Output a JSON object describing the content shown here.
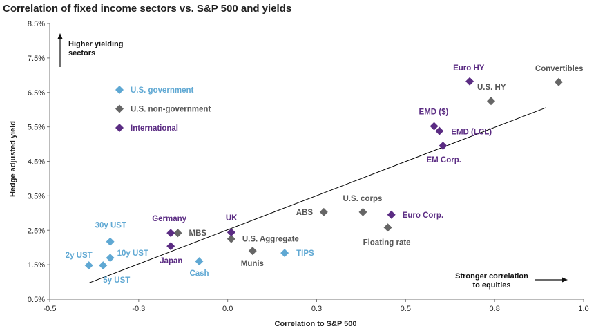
{
  "chart_data": {
    "type": "scatter",
    "title": "Correlation of fixed income sectors vs. S&P 500 and yields",
    "xlabel": "Correlation to S&P 500",
    "ylabel": "Hedge adjusted yield",
    "xlim": [
      -0.5,
      1.0
    ],
    "ylim": [
      0.5,
      8.5
    ],
    "x_ticks": [
      -0.5,
      -0.25,
      0.0,
      0.25,
      0.5,
      0.75,
      1.0
    ],
    "x_tick_labels": [
      "-0.5",
      "-0.3",
      "0.0",
      "0.3",
      "0.5",
      "0.8",
      "1.0"
    ],
    "y_ticks": [
      0.5,
      1.5,
      2.5,
      3.5,
      4.5,
      5.5,
      6.5,
      7.5,
      8.5
    ],
    "y_tick_labels": [
      "0.5%",
      "1.5%",
      "2.5%",
      "3.5%",
      "4.5%",
      "5.5%",
      "6.5%",
      "7.5%",
      "8.5%"
    ],
    "grid": false,
    "legend_position": "top-left",
    "series": [
      {
        "name": "U.S. government",
        "color": "#5fa8d3",
        "points": [
          {
            "label": "2y UST",
            "x": -0.39,
            "y": 1.48
          },
          {
            "label": "5y UST",
            "x": -0.35,
            "y": 1.48
          },
          {
            "label": "10y UST",
            "x": -0.33,
            "y": 1.7
          },
          {
            "label": "30y UST",
            "x": -0.33,
            "y": 2.17
          },
          {
            "label": "Cash",
            "x": -0.08,
            "y": 1.6
          },
          {
            "label": "TIPS",
            "x": 0.16,
            "y": 1.84
          }
        ]
      },
      {
        "name": "U.S. non-government",
        "color": "#666666",
        "points": [
          {
            "label": "MBS",
            "x": -0.14,
            "y": 2.42
          },
          {
            "label": "U.S. Aggregate",
            "x": 0.01,
            "y": 2.25
          },
          {
            "label": "Munis",
            "x": 0.07,
            "y": 1.9
          },
          {
            "label": "ABS",
            "x": 0.27,
            "y": 3.03
          },
          {
            "label": "U.S. corps",
            "x": 0.38,
            "y": 3.03
          },
          {
            "label": "Floating rate",
            "x": 0.45,
            "y": 2.58
          },
          {
            "label": "U.S. HY",
            "x": 0.74,
            "y": 6.25
          },
          {
            "label": "Convertibles",
            "x": 0.93,
            "y": 6.8
          }
        ]
      },
      {
        "name": "International",
        "color": "#5b2c83",
        "points": [
          {
            "label": "Germany",
            "x": -0.16,
            "y": 2.42
          },
          {
            "label": "Japan",
            "x": -0.16,
            "y": 2.04
          },
          {
            "label": "UK",
            "x": 0.01,
            "y": 2.44
          },
          {
            "label": "Euro Corp.",
            "x": 0.46,
            "y": 2.95
          },
          {
            "label": "EMD ($)",
            "x": 0.58,
            "y": 5.52
          },
          {
            "label": "EMD (LCL)",
            "x": 0.595,
            "y": 5.38
          },
          {
            "label": "EM Corp.",
            "x": 0.605,
            "y": 4.95
          },
          {
            "label": "Euro HY",
            "x": 0.68,
            "y": 6.82
          }
        ]
      }
    ],
    "trendline": {
      "x": [
        -0.39,
        0.895
      ],
      "y": [
        0.97,
        6.06
      ]
    },
    "annotations": {
      "top": "Higher yielding sectors",
      "top_lines": [
        "Higher yielding",
        "sectors"
      ],
      "right": "Stronger correlation to equities",
      "right_lines": [
        "Stronger correlation",
        "to equities"
      ]
    }
  }
}
